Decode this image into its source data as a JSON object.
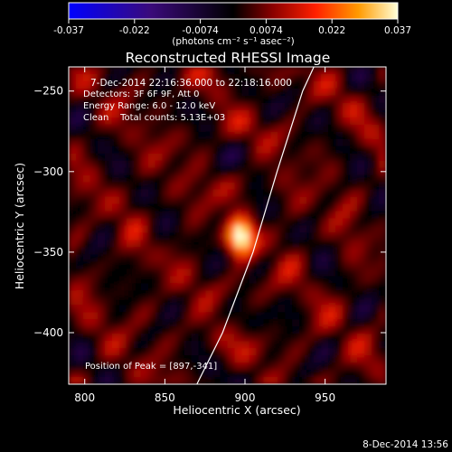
{
  "chart_data": {
    "type": "heatmap",
    "title": "Reconstructed RHESSI Image",
    "colorbar": {
      "ticks": [
        "-0.037",
        "-0.022",
        "-0.0074",
        "0.0074",
        "0.022",
        "0.037"
      ],
      "range": [
        -0.037,
        0.037
      ],
      "units_label": "(photons cm⁻² s⁻¹ asec⁻²)"
    },
    "xlabel": "Heliocentric X (arcsec)",
    "ylabel": "Heliocentric Y (arcsec)",
    "xlim": [
      790,
      988
    ],
    "ylim": [
      -432,
      -235
    ],
    "xticks": [
      800,
      850,
      900,
      950
    ],
    "yticks": [
      -250,
      -300,
      -350,
      -400
    ],
    "annotations": [
      "7-Dec-2014 22:16:36.000 to 22:18:16.000",
      "Detectors: 3F 6F 9F, Att 0",
      "Energy Range: 6.0 - 12.0 keV",
      "Clean    Total counts: 5.13E+03"
    ],
    "peak_label": "Position of Peak = [897,-341]",
    "peak": {
      "x": 897,
      "y": -341,
      "value": 0.037
    },
    "limb": [
      [
        870,
        -432
      ],
      [
        886,
        -400
      ],
      [
        905,
        -350
      ],
      [
        920,
        -300
      ],
      [
        936,
        -250
      ],
      [
        943,
        -235
      ]
    ]
  },
  "footer_timestamp": "8-Dec-2014 13:56",
  "colors": {
    "background": "#000000",
    "text": "#ffffff",
    "limb": "#ffffff"
  }
}
